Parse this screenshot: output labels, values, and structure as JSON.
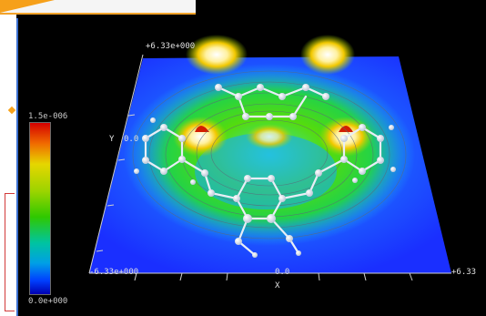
{
  "viewer": {
    "top_left_label": "+6.33e+000",
    "bottom_left_label": "-6.33e+000",
    "bottom_center_label": "0.0",
    "bottom_right_label": "+6.33",
    "y_axis_label": "Y",
    "y_center_label": "0.0",
    "x_axis_label": "X"
  },
  "colorbar": {
    "max_label": "1.5e-006",
    "min_label": "0.0e+000"
  },
  "colors": {
    "accent_orange": "#f6a01a",
    "panel_red": "#d23a3a",
    "surface_blue": "#1a3cff"
  }
}
